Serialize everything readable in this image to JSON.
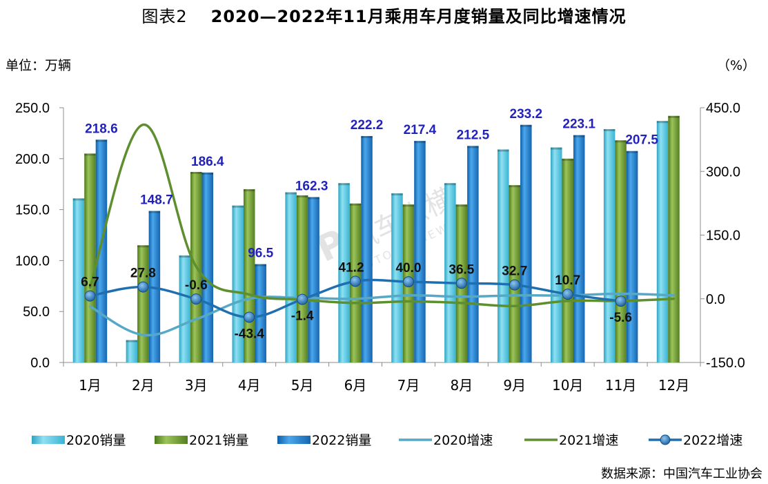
{
  "title": {
    "prefix": "图表2",
    "main": "2020—2022年11月乘用车月度销量及同比增速情况"
  },
  "unit_left": "单位：万辆",
  "unit_right": "（%）",
  "source": "数据来源：中国汽车工业协会",
  "watermark": {
    "cn": "汽车纵横",
    "en": "AUTO REVIEW"
  },
  "colors": {
    "bar2020": "#4FC3DC",
    "bar2021": "#6E9A2C",
    "bar2022": "#1E7BC4",
    "line2020": "#56A9C6",
    "line2021": "#5E8F2E",
    "line2022": "#1F6FB0",
    "label2022": "#2222BB"
  },
  "chart_data": {
    "type": "bar",
    "categories": [
      "1月",
      "2月",
      "3月",
      "4月",
      "5月",
      "6月",
      "7月",
      "8月",
      "9月",
      "10月",
      "11月",
      "12月"
    ],
    "left_axis": {
      "ticks": [
        "250.0",
        "200.0",
        "150.0",
        "100.0",
        "50.0",
        "0.0"
      ],
      "ylim": [
        0,
        250
      ]
    },
    "right_axis": {
      "ticks": [
        "450.0",
        "300.0",
        "150.0",
        "0.0",
        "-150.0"
      ],
      "ylim": [
        -150,
        450
      ]
    },
    "series": [
      {
        "name": "2020销量",
        "kind": "bar",
        "values": [
          161,
          22,
          105,
          154,
          167,
          176,
          166,
          176,
          209,
          211,
          229,
          237
        ]
      },
      {
        "name": "2021销量",
        "kind": "bar",
        "values": [
          205,
          115,
          187,
          170,
          164,
          156,
          155,
          155,
          174,
          200,
          218,
          242
        ]
      },
      {
        "name": "2022销量",
        "kind": "bar",
        "values": [
          218.6,
          148.7,
          186.4,
          96.5,
          162.3,
          222.2,
          217.4,
          212.5,
          233.2,
          223.1,
          207.5,
          null
        ],
        "labels": [
          "218.6",
          "148.7",
          "186.4",
          "96.5",
          "162.3",
          "222.2",
          "217.4",
          "212.5",
          "233.2",
          "223.1",
          "207.5",
          ""
        ]
      },
      {
        "name": "2020增速",
        "kind": "line",
        "values": [
          -18,
          -85,
          -48,
          0,
          2,
          0,
          8,
          5,
          8,
          8,
          12,
          8
        ]
      },
      {
        "name": "2021增速",
        "kind": "line",
        "values": [
          27,
          410,
          76,
          10,
          -2,
          -10,
          -6,
          -10,
          -17,
          -5,
          -5,
          0
        ]
      },
      {
        "name": "2022增速",
        "kind": "line",
        "values": [
          6.7,
          27.8,
          -0.6,
          -43.4,
          -1.4,
          41.2,
          40.0,
          36.5,
          32.7,
          10.7,
          -5.6,
          null
        ],
        "labels": [
          "6.7",
          "27.8",
          "-0.6",
          "-43.4",
          "-1.4",
          "41.2",
          "40.0",
          "36.5",
          "32.7",
          "10.7",
          "-5.6",
          ""
        ]
      }
    ],
    "legend": {
      "position": "bottom"
    },
    "grid": false
  }
}
